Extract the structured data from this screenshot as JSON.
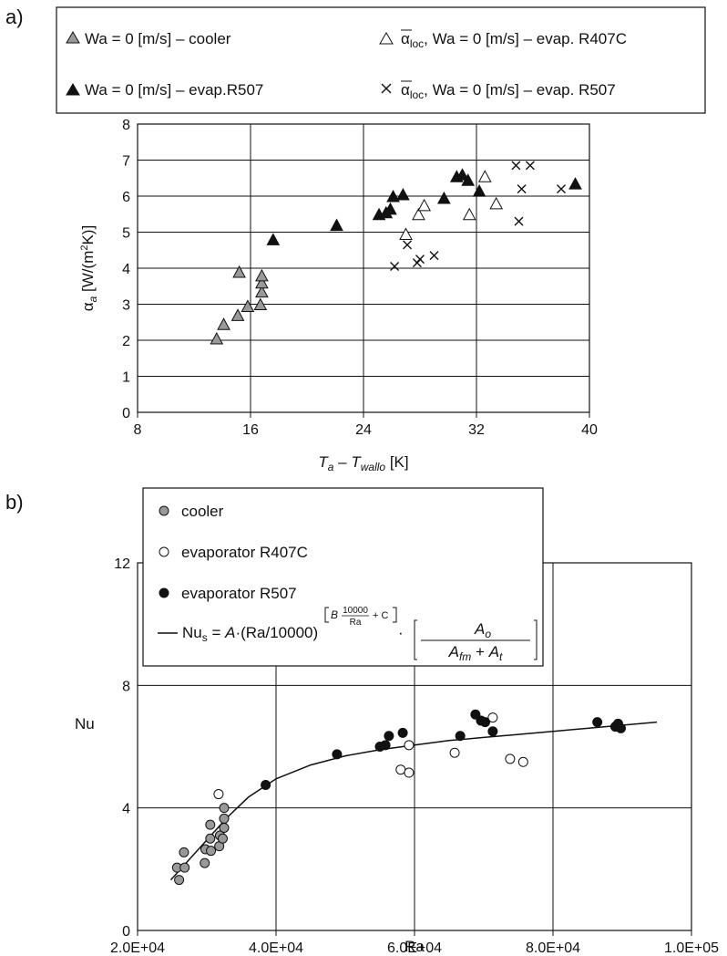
{
  "panels": {
    "a": "a)",
    "b": "b)"
  },
  "chart_data": [
    {
      "type": "scatter",
      "title": "",
      "xlabel": "T_a – T_wallo [K]",
      "xlabel_parts": {
        "T": "T",
        "a": "a",
        "dash": " – ",
        "T2": "T",
        "sub": "wallo",
        "unit": " [K]"
      },
      "ylabel": "α_a [W/(m²K)]",
      "ylabel_parts": {
        "alpha": "α",
        "sub": "a",
        "unit1": " [W/(m",
        "sup": "2",
        "unit2": "K)]"
      },
      "xlim": [
        8,
        40
      ],
      "ylim": [
        0,
        8
      ],
      "xticks": [
        "8",
        "16",
        "24",
        "32",
        "40"
      ],
      "yticks": [
        "0",
        "1",
        "2",
        "3",
        "4",
        "5",
        "6",
        "7",
        "8"
      ],
      "grid": true,
      "legend_placement": "top",
      "series": [
        {
          "name": "Wa = 0 [m/s] – cooler",
          "marker": "triangle-gray",
          "points": [
            [
              13.6,
              2.05
            ],
            [
              14.1,
              2.45
            ],
            [
              15.1,
              2.7
            ],
            [
              15.2,
              3.9
            ],
            [
              15.8,
              2.95
            ],
            [
              16.7,
              3.0
            ],
            [
              16.8,
              3.35
            ],
            [
              16.8,
              3.6
            ],
            [
              16.8,
              3.8
            ]
          ]
        },
        {
          "name": "Wa = 0 [m/s] – evap.R507",
          "marker": "triangle-black",
          "points": [
            [
              17.6,
              4.8
            ],
            [
              22.1,
              5.2
            ],
            [
              25.1,
              5.5
            ],
            [
              25.6,
              5.55
            ],
            [
              25.9,
              5.65
            ],
            [
              26.1,
              6.0
            ],
            [
              26.8,
              6.05
            ],
            [
              29.7,
              5.95
            ],
            [
              30.6,
              6.55
            ],
            [
              31.0,
              6.6
            ],
            [
              31.4,
              6.45
            ],
            [
              32.2,
              6.15
            ],
            [
              39.0,
              6.35
            ]
          ]
        },
        {
          "name": "ᾱloc, Wa = 0 [m/s] – evap. R407C",
          "marker": "triangle-open",
          "points": [
            [
              27.0,
              4.95
            ],
            [
              27.9,
              5.5
            ],
            [
              28.3,
              5.75
            ],
            [
              31.5,
              5.5
            ],
            [
              33.4,
              5.8
            ],
            [
              32.6,
              6.55
            ]
          ]
        },
        {
          "name": "ᾱloc, Wa = 0 [m/s] – evap. R507",
          "marker": "cross",
          "points": [
            [
              26.2,
              4.05
            ],
            [
              27.1,
              4.65
            ],
            [
              27.8,
              4.15
            ],
            [
              28.0,
              4.25
            ],
            [
              29.0,
              4.35
            ],
            [
              34.8,
              6.85
            ],
            [
              35.8,
              6.85
            ],
            [
              35.2,
              6.2
            ],
            [
              38.0,
              6.2
            ],
            [
              35.0,
              5.3
            ]
          ]
        }
      ],
      "legend_labels": {
        "l1": "Wa = 0 [m/s] – cooler",
        "l2": "Wa = 0 [m/s] – evap.R507",
        "l3_alpha": "α",
        "l3_sub": "loc",
        "l3_rest": ", Wa = 0 [m/s] – evap. R407C",
        "l4_alpha": "α",
        "l4_sub": "loc",
        "l4_rest": ", Wa = 0 [m/s] – evap. R507"
      }
    },
    {
      "type": "scatter",
      "title": "",
      "xlabel": "Ra",
      "ylabel": "Nu",
      "xlim": [
        20000,
        100000
      ],
      "ylim": [
        0,
        12
      ],
      "xticks": [
        "2.0E+04",
        "4.0E+04",
        "6.0E+04",
        "8.0E+04",
        "1.0E+05"
      ],
      "yticks": [
        "0",
        "4",
        "8",
        "12"
      ],
      "grid": true,
      "legend_placement": "top-left",
      "series": [
        {
          "name": "cooler",
          "marker": "circle-gray",
          "points": [
            [
              25700,
              2.05
            ],
            [
              26000,
              1.65
            ],
            [
              26800,
              2.05
            ],
            [
              26700,
              2.55
            ],
            [
              29700,
              2.2
            ],
            [
              29800,
              2.65
            ],
            [
              30600,
              2.6
            ],
            [
              30500,
              3.0
            ],
            [
              30500,
              3.45
            ],
            [
              31800,
              2.75
            ],
            [
              31900,
              3.1
            ],
            [
              32300,
              3.0
            ],
            [
              32500,
              3.35
            ],
            [
              32500,
              3.65
            ],
            [
              32500,
              4.0
            ]
          ]
        },
        {
          "name": "evaporator R407C",
          "marker": "circle-open",
          "points": [
            [
              31700,
              4.45
            ],
            [
              58000,
              5.25
            ],
            [
              59200,
              5.15
            ],
            [
              59200,
              6.05
            ],
            [
              65800,
              5.8
            ],
            [
              71300,
              6.95
            ],
            [
              73800,
              5.6
            ],
            [
              75700,
              5.5
            ]
          ]
        },
        {
          "name": "evaporator R507",
          "marker": "circle-black",
          "points": [
            [
              38500,
              4.75
            ],
            [
              48800,
              5.75
            ],
            [
              55000,
              6.0
            ],
            [
              55800,
              6.05
            ],
            [
              56300,
              6.35
            ],
            [
              58300,
              6.45
            ],
            [
              66600,
              6.35
            ],
            [
              68800,
              7.05
            ],
            [
              69600,
              6.85
            ],
            [
              70200,
              6.8
            ],
            [
              71300,
              6.5
            ],
            [
              86400,
              6.8
            ],
            [
              89000,
              6.65
            ],
            [
              89400,
              6.75
            ],
            [
              89800,
              6.6
            ]
          ]
        },
        {
          "name": "Nu_s fit curve",
          "marker": "line",
          "points": [
            [
              24800,
              1.65
            ],
            [
              27000,
              2.2
            ],
            [
              30000,
              2.95
            ],
            [
              33000,
              3.7
            ],
            [
              36000,
              4.35
            ],
            [
              40000,
              4.95
            ],
            [
              45000,
              5.4
            ],
            [
              50000,
              5.7
            ],
            [
              55000,
              5.9
            ],
            [
              60000,
              6.05
            ],
            [
              65000,
              6.2
            ],
            [
              70000,
              6.3
            ],
            [
              75000,
              6.4
            ],
            [
              80000,
              6.5
            ],
            [
              85000,
              6.6
            ],
            [
              90000,
              6.7
            ],
            [
              95000,
              6.8
            ]
          ]
        }
      ],
      "legend_labels": {
        "l1": "cooler",
        "l2": "evaporator R407C",
        "l3": "evaporator R507",
        "eq_lhs": "Nu",
        "eq_lhs_sub": "s",
        "eq_mid": " = ",
        "eq_A": "A",
        "eq_ra": "·(Ra/10000)",
        "eq_exp_B": "B",
        "eq_exp_num": "10000",
        "eq_exp_den": "Ra",
        "eq_exp_C": "+ C",
        "eq_dot": "·",
        "eq_frac_num": "A",
        "eq_frac_num_sub": "o",
        "eq_frac_den1": "A",
        "eq_frac_den1_sub": "fm",
        "eq_frac_plus": " + ",
        "eq_frac_den2": "A",
        "eq_frac_den2_sub": "t"
      }
    }
  ]
}
